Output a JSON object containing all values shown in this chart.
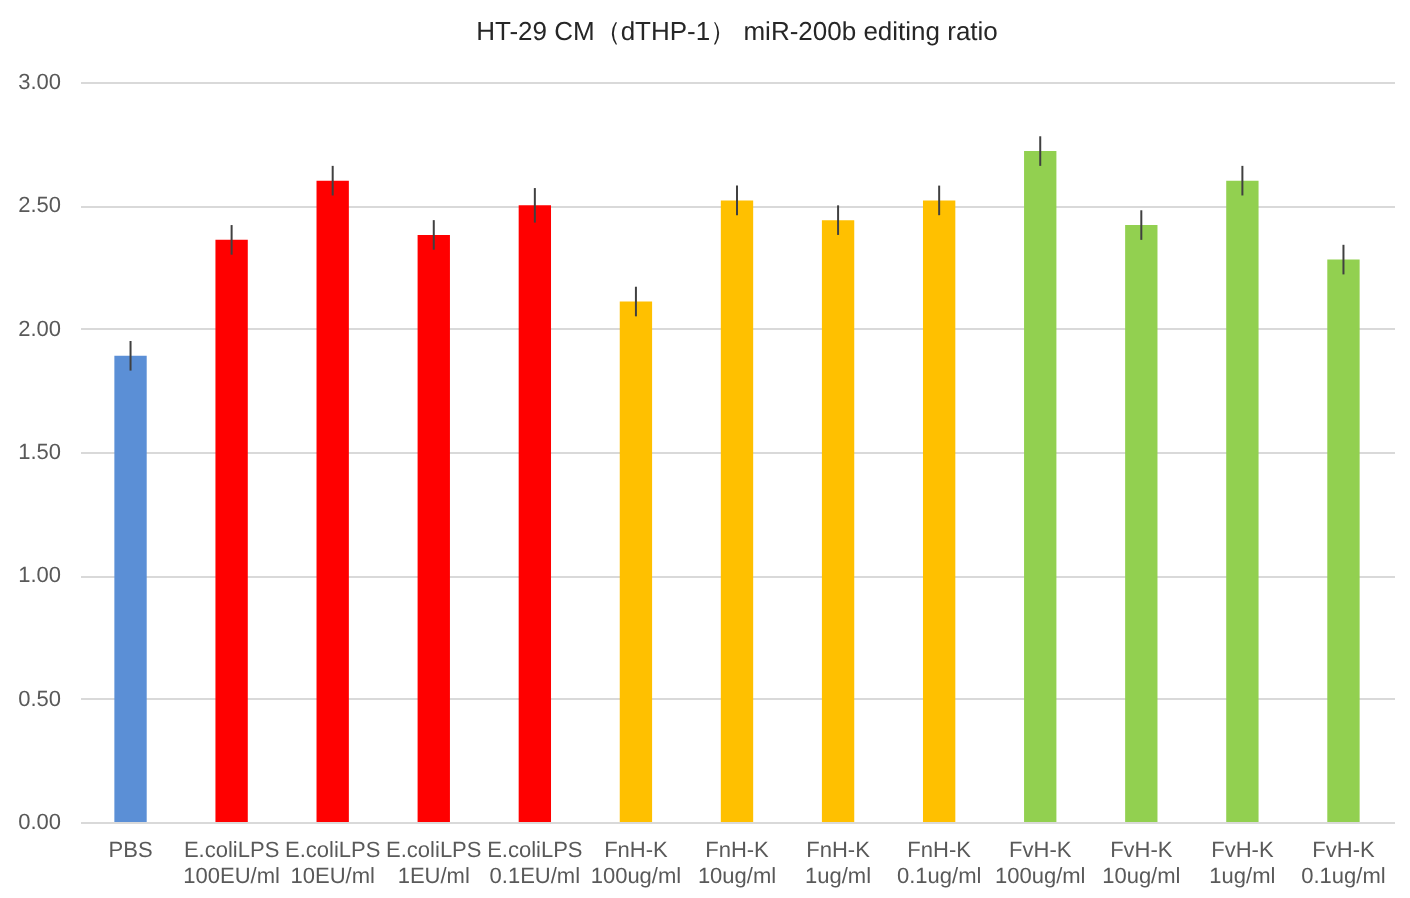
{
  "chart_data": {
    "type": "bar",
    "title": "HT-29 CM（dTHP-1） miR-200b editing ratio",
    "categories": [
      "PBS",
      "E.coliLPS\n100EU/ml",
      "E.coliLPS\n10EU/ml",
      "E.coliLPS\n1EU/ml",
      "E.coliLPS\n0.1EU/ml",
      "FnH-K\n100ug/ml",
      "FnH-K\n10ug/ml",
      "FnH-K\n1ug/ml",
      "FnH-K\n0.1ug/ml",
      "FvH-K\n100ug/ml",
      "FvH-K\n10ug/ml",
      "FvH-K\n1ug/ml",
      "FvH-K\n0.1ug/ml"
    ],
    "values": [
      1.89,
      2.36,
      2.6,
      2.38,
      2.5,
      2.11,
      2.52,
      2.44,
      2.52,
      2.72,
      2.42,
      2.6,
      2.28
    ],
    "errors": [
      0.06,
      0.06,
      0.06,
      0.06,
      0.07,
      0.06,
      0.06,
      0.06,
      0.06,
      0.06,
      0.06,
      0.06,
      0.06
    ],
    "colors": [
      "#5b8fd6",
      "#ff0000",
      "#ff0000",
      "#ff0000",
      "#ff0000",
      "#ffc000",
      "#ffc000",
      "#ffc000",
      "#ffc000",
      "#92d050",
      "#92d050",
      "#92d050",
      "#92d050"
    ],
    "ylim": [
      0,
      3
    ],
    "yticks": [
      {
        "value": 0,
        "label": "0.00"
      },
      {
        "value": 0.5,
        "label": "0.50"
      },
      {
        "value": 1,
        "label": "1.00"
      },
      {
        "value": 1.5,
        "label": "1.50"
      },
      {
        "value": 2,
        "label": "2.00"
      },
      {
        "value": 2.5,
        "label": "2.50"
      },
      {
        "value": 3,
        "label": "3.00"
      }
    ],
    "grid": "y"
  }
}
